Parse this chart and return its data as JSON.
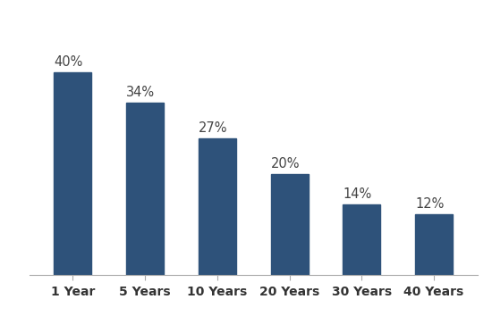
{
  "categories": [
    "1 Year",
    "5 Years",
    "10 Years",
    "20 Years",
    "30 Years",
    "40 Years"
  ],
  "values": [
    40,
    34,
    27,
    20,
    14,
    12
  ],
  "labels": [
    "40%",
    "34%",
    "27%",
    "20%",
    "14%",
    "12%"
  ],
  "bar_color": "#2E527A",
  "background_color": "#FFFFFF",
  "ylim": [
    0,
    50
  ],
  "label_fontsize": 10.5,
  "tick_fontsize": 10,
  "bar_width": 0.52,
  "figure_width": 5.5,
  "figure_height": 3.54,
  "dpi": 100
}
